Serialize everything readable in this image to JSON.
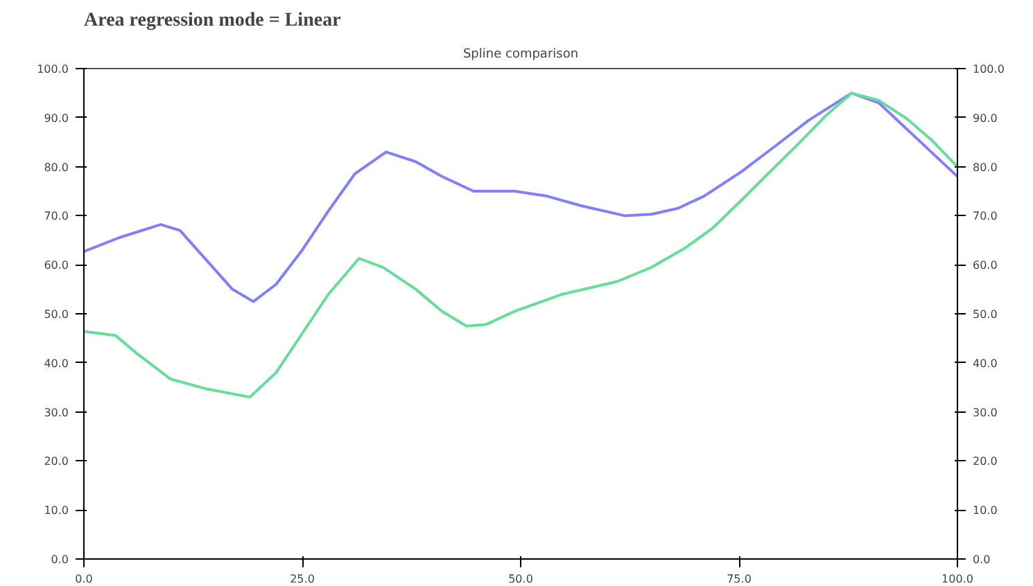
{
  "chart_data": {
    "type": "line",
    "title": "Area regression mode = Linear",
    "subtitle": "Spline comparison",
    "series": [
      {
        "color": "#8080ff",
        "x": [
          0,
          4,
          8.8,
          11,
          14,
          17,
          19.4,
          22,
          25,
          28,
          31,
          34.6,
          38,
          41,
          44.6,
          49.3,
          53,
          57,
          61.9,
          65,
          68,
          71,
          75.3,
          79,
          83,
          87.9,
          91,
          94,
          97,
          100
        ],
        "values": [
          62.7,
          65.5,
          68.2,
          67,
          61,
          55,
          52.5,
          56,
          63,
          71,
          78.5,
          83,
          81,
          78,
          75,
          75,
          74,
          72,
          70,
          70.3,
          71.5,
          74,
          79,
          84,
          89.5,
          95,
          93,
          88,
          83,
          78
        ]
      },
      {
        "color": "#66dd99",
        "x": [
          0,
          3.6,
          6,
          9.9,
          14,
          19,
          22,
          25,
          28,
          31.5,
          34.3,
          38,
          41,
          43.8,
          46,
          49.3,
          54.8,
          61.1,
          65,
          68.9,
          72,
          75.3,
          78,
          81.6,
          85,
          87.9,
          91,
          94.2,
          97,
          100
        ],
        "values": [
          46.4,
          45.6,
          42,
          36.7,
          34.7,
          33,
          38,
          46,
          54,
          61.3,
          59.4,
          55,
          50.5,
          47.5,
          47.8,
          50.5,
          54,
          56.6,
          59.5,
          63.5,
          67.5,
          73.2,
          78,
          84.3,
          90.5,
          95,
          93.5,
          89.8,
          85.5,
          80
        ]
      }
    ],
    "xlim": [
      0,
      100
    ],
    "xticks": [
      {
        "value": 0,
        "label": "0.0"
      },
      {
        "value": 25,
        "label": "25.0"
      },
      {
        "value": 50,
        "label": "50.0"
      },
      {
        "value": 75,
        "label": "75.0"
      },
      {
        "value": 100,
        "label": "100.0"
      }
    ],
    "ylim": [
      0,
      100
    ],
    "yticks": [
      {
        "value": 0,
        "label": "0.0"
      },
      {
        "value": 10,
        "label": "10.0"
      },
      {
        "value": 20,
        "label": "20.0"
      },
      {
        "value": 30,
        "label": "30.0"
      },
      {
        "value": 40,
        "label": "40.0"
      },
      {
        "value": 50,
        "label": "50.0"
      },
      {
        "value": 60,
        "label": "60.0"
      },
      {
        "value": 70,
        "label": "70.0"
      },
      {
        "value": 80,
        "label": "80.0"
      },
      {
        "value": 90,
        "label": "90.0"
      },
      {
        "value": 100,
        "label": "100.0"
      }
    ],
    "y2lim": [
      0,
      100
    ],
    "y2ticks": [
      {
        "value": 0,
        "label": "0.0"
      },
      {
        "value": 10,
        "label": "10.0"
      },
      {
        "value": 20,
        "label": "20.0"
      },
      {
        "value": 30,
        "label": "30.0"
      },
      {
        "value": 40,
        "label": "40.0"
      },
      {
        "value": 50,
        "label": "50.0"
      },
      {
        "value": 60,
        "label": "60.0"
      },
      {
        "value": 70,
        "label": "70.0"
      },
      {
        "value": 80,
        "label": "80.0"
      },
      {
        "value": 90,
        "label": "90.0"
      },
      {
        "value": 100,
        "label": "100.0"
      }
    ],
    "grid": false,
    "marker": "none",
    "line_style": "solid"
  }
}
